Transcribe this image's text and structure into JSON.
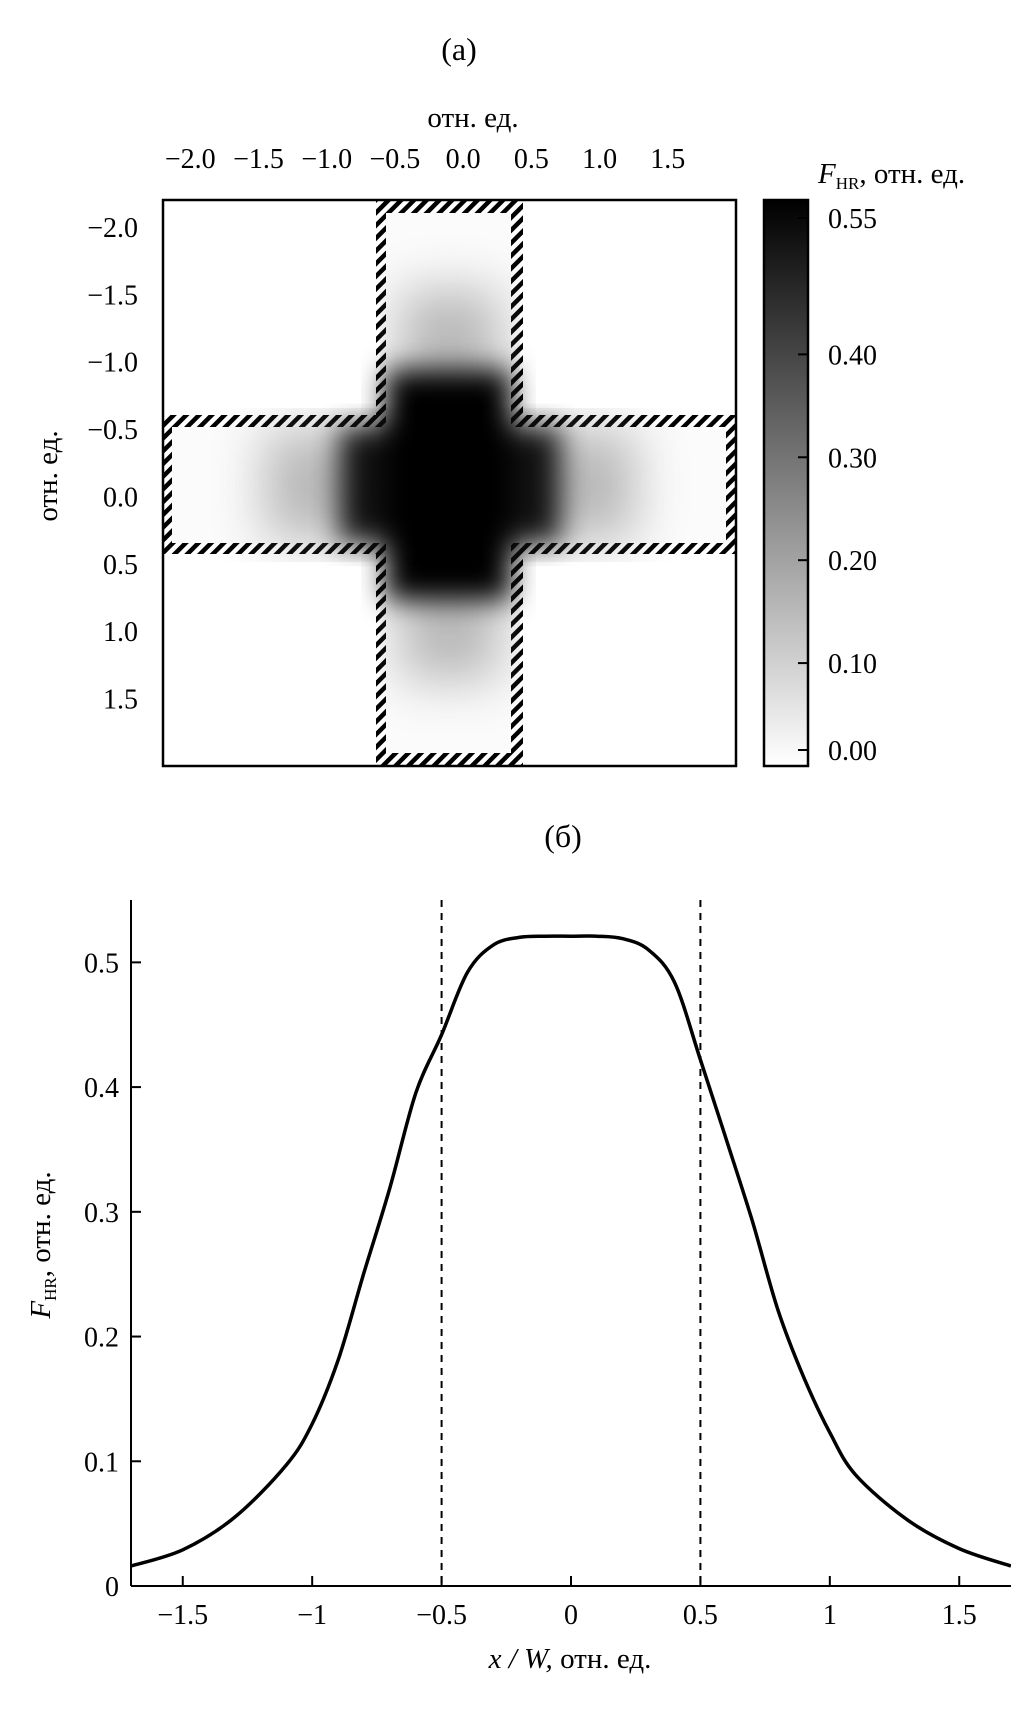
{
  "chart_data": [
    {
      "panel": "(a)",
      "type": "heatmap",
      "title": "(a)",
      "top_axis_label": "отн. ед.",
      "top_ticks": [
        -2.0,
        -1.5,
        -1.0,
        -0.5,
        0.0,
        0.5,
        1.0,
        1.5
      ],
      "top_tick_labels": [
        "−2.0",
        "−1.5",
        "−1.0",
        "−0.5",
        "0.0",
        "0.5",
        "1.0",
        "1.5"
      ],
      "left_axis_label": "отн. ед.",
      "left_ticks": [
        -2.0,
        -1.5,
        -1.0,
        -0.5,
        0.0,
        0.5,
        1.0,
        1.5
      ],
      "left_tick_labels": [
        "−2.0",
        "−1.5",
        "−1.0",
        "−0.5",
        "0.0",
        "0.5",
        "1.0",
        "1.5"
      ],
      "xlim": [
        -2.2,
        2.0
      ],
      "ylim": [
        -2.2,
        2.0
      ],
      "cross_half_width": 0.5,
      "colorbar": {
        "label_main": "F",
        "label_sub": "HR",
        "label_rest": ", отн. ед.",
        "range": [
          0.0,
          0.55
        ],
        "ticks": [
          0.0,
          0.1,
          0.2,
          0.3,
          0.4,
          0.55
        ],
        "tick_labels": [
          "0.00",
          "0.10",
          "0.20",
          "0.30",
          "0.40",
          "0.55"
        ],
        "colors": [
          "#ffffff",
          "#000000"
        ]
      }
    },
    {
      "panel": "(б)",
      "type": "line",
      "title": "(б)",
      "xlabel_main": "x / W,",
      "xlabel_rest": " отн. ед.",
      "ylabel_main": "F",
      "ylabel_sub": "HR",
      "ylabel_rest": ", отн. ед.",
      "xlim": [
        -1.7,
        1.7
      ],
      "ylim": [
        0,
        0.55
      ],
      "xticks": [
        -1.5,
        -1,
        -0.5,
        0,
        0.5,
        1,
        1.5
      ],
      "xtick_labels": [
        "−1.5",
        "−1",
        "−0.5",
        "0",
        "0.5",
        "1",
        "1.5"
      ],
      "yticks": [
        0,
        0.1,
        0.2,
        0.3,
        0.4,
        0.5
      ],
      "ytick_labels": [
        "0",
        "0.1",
        "0.2",
        "0.3",
        "0.4",
        "0.5"
      ],
      "vlines": [
        -0.5,
        0.5
      ],
      "series": [
        {
          "name": "F_HR",
          "x": [
            -1.7,
            -1.5,
            -1.3,
            -1.1,
            -1.0,
            -0.9,
            -0.8,
            -0.7,
            -0.6,
            -0.5,
            -0.4,
            -0.3,
            -0.2,
            -0.1,
            0.0,
            0.1,
            0.2,
            0.3,
            0.4,
            0.5,
            0.6,
            0.7,
            0.8,
            0.9,
            1.0,
            1.1,
            1.3,
            1.5,
            1.7
          ],
          "y": [
            0.016,
            0.029,
            0.055,
            0.097,
            0.13,
            0.181,
            0.251,
            0.319,
            0.395,
            0.442,
            0.492,
            0.514,
            0.52,
            0.521,
            0.521,
            0.521,
            0.519,
            0.51,
            0.484,
            0.422,
            0.358,
            0.293,
            0.221,
            0.167,
            0.123,
            0.089,
            0.053,
            0.03,
            0.016
          ]
        }
      ]
    }
  ]
}
